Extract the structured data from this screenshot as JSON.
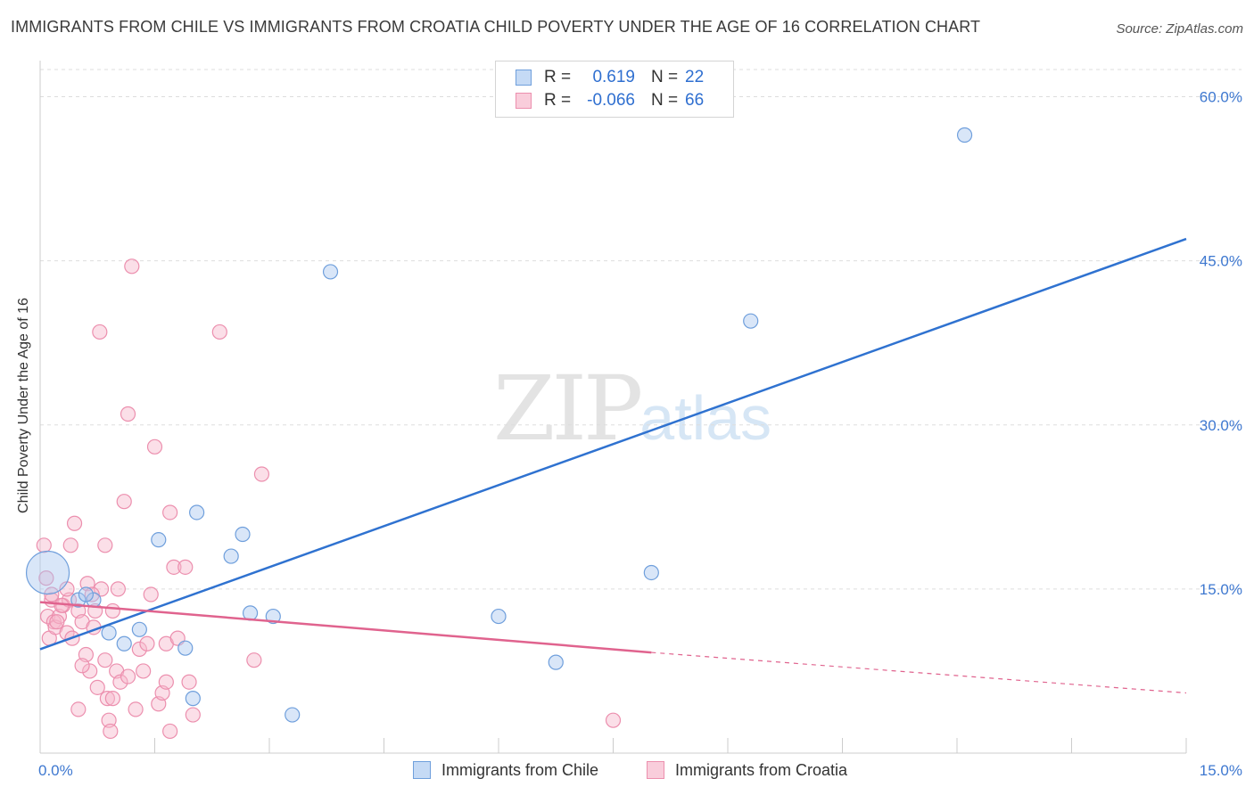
{
  "title": "IMMIGRANTS FROM CHILE VS IMMIGRANTS FROM CROATIA CHILD POVERTY UNDER THE AGE OF 16 CORRELATION CHART",
  "source": "Source: ZipAtlas.com",
  "watermark": {
    "zip": "ZIP",
    "atlas": "atlas"
  },
  "legend": {
    "chile": {
      "r_label": "R =",
      "r_value": "0.619",
      "n_label": "N =",
      "n_value": "22"
    },
    "croatia": {
      "r_label": "R =",
      "r_value": "-0.066",
      "n_label": "N =",
      "n_value": "66"
    }
  },
  "bottom_legend": {
    "chile": "Immigrants from Chile",
    "croatia": "Immigrants from Croatia"
  },
  "colors": {
    "chile_fill": "#aac8f0",
    "chile_stroke": "#6f9fdc",
    "chile_line": "#2f72d0",
    "croatia_fill": "#f6b8cc",
    "croatia_stroke": "#ec8fae",
    "croatia_line": "#e0638e",
    "tick_label": "#3e78d0",
    "grid": "#dddddd"
  },
  "chart_data": {
    "type": "scatter",
    "title": "IMMIGRANTS FROM CHILE VS IMMIGRANTS FROM CROATIA CHILD POVERTY UNDER THE AGE OF 16 CORRELATION CHART",
    "xlabel": "",
    "ylabel": "Child Poverty Under the Age of 16",
    "xlim": [
      0,
      15
    ],
    "ylim": [
      0,
      62
    ],
    "x_tick_labels": [
      "0.0%",
      "15.0%"
    ],
    "y_ticks": [
      15,
      30,
      45,
      60
    ],
    "y_tick_labels": [
      "15.0%",
      "30.0%",
      "45.0%",
      "60.0%"
    ],
    "series": [
      {
        "name": "Immigrants from Chile",
        "points": [
          [
            0.1,
            16.5
          ],
          [
            0.5,
            14.0
          ],
          [
            0.7,
            14.0
          ],
          [
            0.9,
            11.0
          ],
          [
            1.1,
            10.0
          ],
          [
            1.3,
            11.3
          ],
          [
            1.55,
            19.5
          ],
          [
            1.9,
            9.6
          ],
          [
            2.0,
            5.0
          ],
          [
            2.05,
            22.0
          ],
          [
            2.5,
            18.0
          ],
          [
            2.65,
            20.0
          ],
          [
            2.75,
            12.8
          ],
          [
            3.05,
            12.5
          ],
          [
            3.3,
            3.5
          ],
          [
            3.8,
            44.0
          ],
          [
            6.0,
            12.5
          ],
          [
            6.75,
            8.3
          ],
          [
            8.0,
            16.5
          ],
          [
            9.3,
            39.5
          ],
          [
            12.1,
            56.5
          ],
          [
            0.6,
            14.5
          ]
        ],
        "trend": {
          "x0": 0.0,
          "y0": 9.5,
          "x1": 15.0,
          "y1": 47.0
        }
      },
      {
        "name": "Immigrants from Croatia",
        "points": [
          [
            0.05,
            19.0
          ],
          [
            0.08,
            16.0
          ],
          [
            0.1,
            12.5
          ],
          [
            0.12,
            10.5
          ],
          [
            0.15,
            14.0
          ],
          [
            0.18,
            12.0
          ],
          [
            0.2,
            11.5
          ],
          [
            0.25,
            12.5
          ],
          [
            0.3,
            13.5
          ],
          [
            0.35,
            11.0
          ],
          [
            0.38,
            14.0
          ],
          [
            0.4,
            19.0
          ],
          [
            0.42,
            10.5
          ],
          [
            0.45,
            21.0
          ],
          [
            0.5,
            4.0
          ],
          [
            0.5,
            13.0
          ],
          [
            0.55,
            12.0
          ],
          [
            0.6,
            9.0
          ],
          [
            0.62,
            15.5
          ],
          [
            0.65,
            7.5
          ],
          [
            0.7,
            11.5
          ],
          [
            0.72,
            13.0
          ],
          [
            0.75,
            6.0
          ],
          [
            0.8,
            15.0
          ],
          [
            0.85,
            19.0
          ],
          [
            0.88,
            5.0
          ],
          [
            0.9,
            3.0
          ],
          [
            0.92,
            2.0
          ],
          [
            0.95,
            13.0
          ],
          [
            1.0,
            7.5
          ],
          [
            1.05,
            6.5
          ],
          [
            1.1,
            23.0
          ],
          [
            1.15,
            31.0
          ],
          [
            1.2,
            44.5
          ],
          [
            1.25,
            4.0
          ],
          [
            1.3,
            9.5
          ],
          [
            1.35,
            7.5
          ],
          [
            1.4,
            10.0
          ],
          [
            1.45,
            14.5
          ],
          [
            1.5,
            28.0
          ],
          [
            1.55,
            4.5
          ],
          [
            1.6,
            5.5
          ],
          [
            1.65,
            10.0
          ],
          [
            1.7,
            22.0
          ],
          [
            1.75,
            17.0
          ],
          [
            1.8,
            10.5
          ],
          [
            1.9,
            17.0
          ],
          [
            1.95,
            6.5
          ],
          [
            2.0,
            3.5
          ],
          [
            2.35,
            38.5
          ],
          [
            2.8,
            8.5
          ],
          [
            2.9,
            25.5
          ],
          [
            0.78,
            38.5
          ],
          [
            1.7,
            2.0
          ],
          [
            1.65,
            6.5
          ],
          [
            0.35,
            15.0
          ],
          [
            0.55,
            8.0
          ],
          [
            0.28,
            13.5
          ],
          [
            0.95,
            5.0
          ],
          [
            1.15,
            7.0
          ],
          [
            0.68,
            14.5
          ],
          [
            0.85,
            8.5
          ],
          [
            0.22,
            12.0
          ],
          [
            0.15,
            14.5
          ],
          [
            7.5,
            3.0
          ],
          [
            1.02,
            15.0
          ]
        ],
        "trend": {
          "x0": 0.0,
          "y0": 13.8,
          "x1": 8.0,
          "y1": 9.2,
          "dash_to_x": 15.0,
          "dash_to_y": 5.5
        }
      }
    ]
  }
}
